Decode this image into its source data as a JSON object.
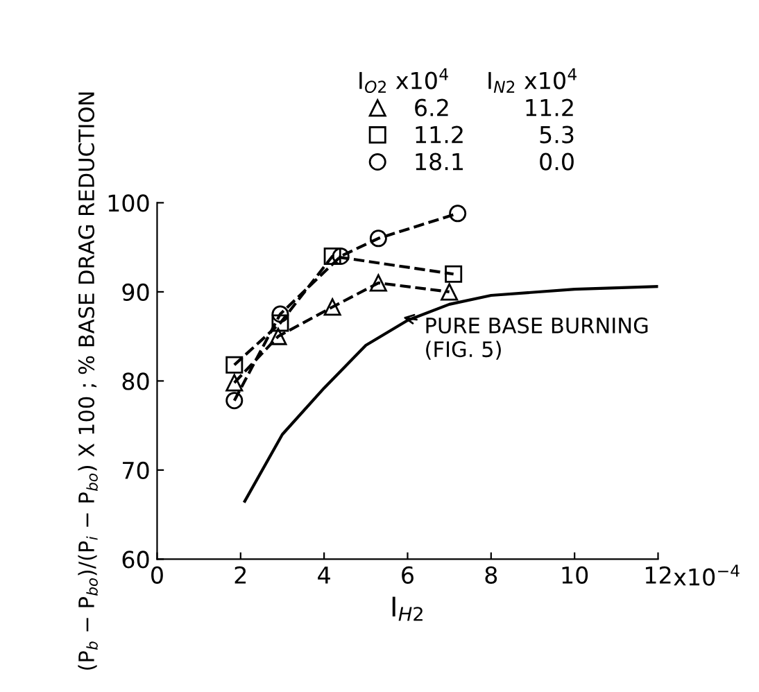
{
  "chart_data": {
    "type": "line",
    "xlabel": "I$_{H2}$",
    "ylabel": "(P$_{b}$ − P$_{bo}$)/(P$_{i}$ − P$_{bo}$) X 100 ; % BASE DRAG REDUCTION",
    "legend_title": "I$_{O2}$ x10$^{4}$     I$_{N2}$ x10$^{4}$",
    "legend": "top",
    "xlim": [
      0,
      12
    ],
    "xticks": [
      0,
      2,
      4,
      6,
      8,
      10,
      12
    ],
    "ylim": [
      60,
      100
    ],
    "yticks": [
      60,
      70,
      80,
      90,
      100
    ],
    "grid": false,
    "series": [
      {
        "name": "6.2          11.2",
        "color": "#000000",
        "marker": "triangle",
        "line_style": "dashed",
        "x": [
          1.85,
          2.9,
          4.2,
          5.3,
          7.0
        ],
        "values": [
          79.8,
          85,
          88.3,
          91,
          90
        ]
      },
      {
        "name": "11.2          5.3",
        "color": "#000000",
        "marker": "square",
        "line_style": "dashed",
        "x": [
          1.85,
          2.95,
          4.2,
          7.1
        ],
        "values": [
          81.8,
          86.5,
          94,
          92
        ]
      },
      {
        "name": "18.1          0.0",
        "color": "#000000",
        "marker": "circle",
        "line_style": "dashed",
        "x": [
          1.85,
          2.95,
          4.4,
          5.3,
          7.2
        ],
        "values": [
          77.8,
          87.5,
          94,
          96,
          98.8
        ]
      },
      {
        "color": "#000000",
        "marker": "none",
        "line_style": "solid",
        "x": [
          2.1,
          3,
          4,
          5,
          6,
          7,
          8,
          10,
          12
        ],
        "values": [
          66.5,
          74,
          79.2,
          84,
          86.8,
          88.6,
          89.6,
          90.3,
          90.6
        ]
      }
    ],
    "annotations": [
      "x10$^{−4}$",
      {
        "text": "PURE BASE BURNING\n(FIG. 5)",
        "x": 5.8,
        "y": 87.2
      }
    ]
  }
}
